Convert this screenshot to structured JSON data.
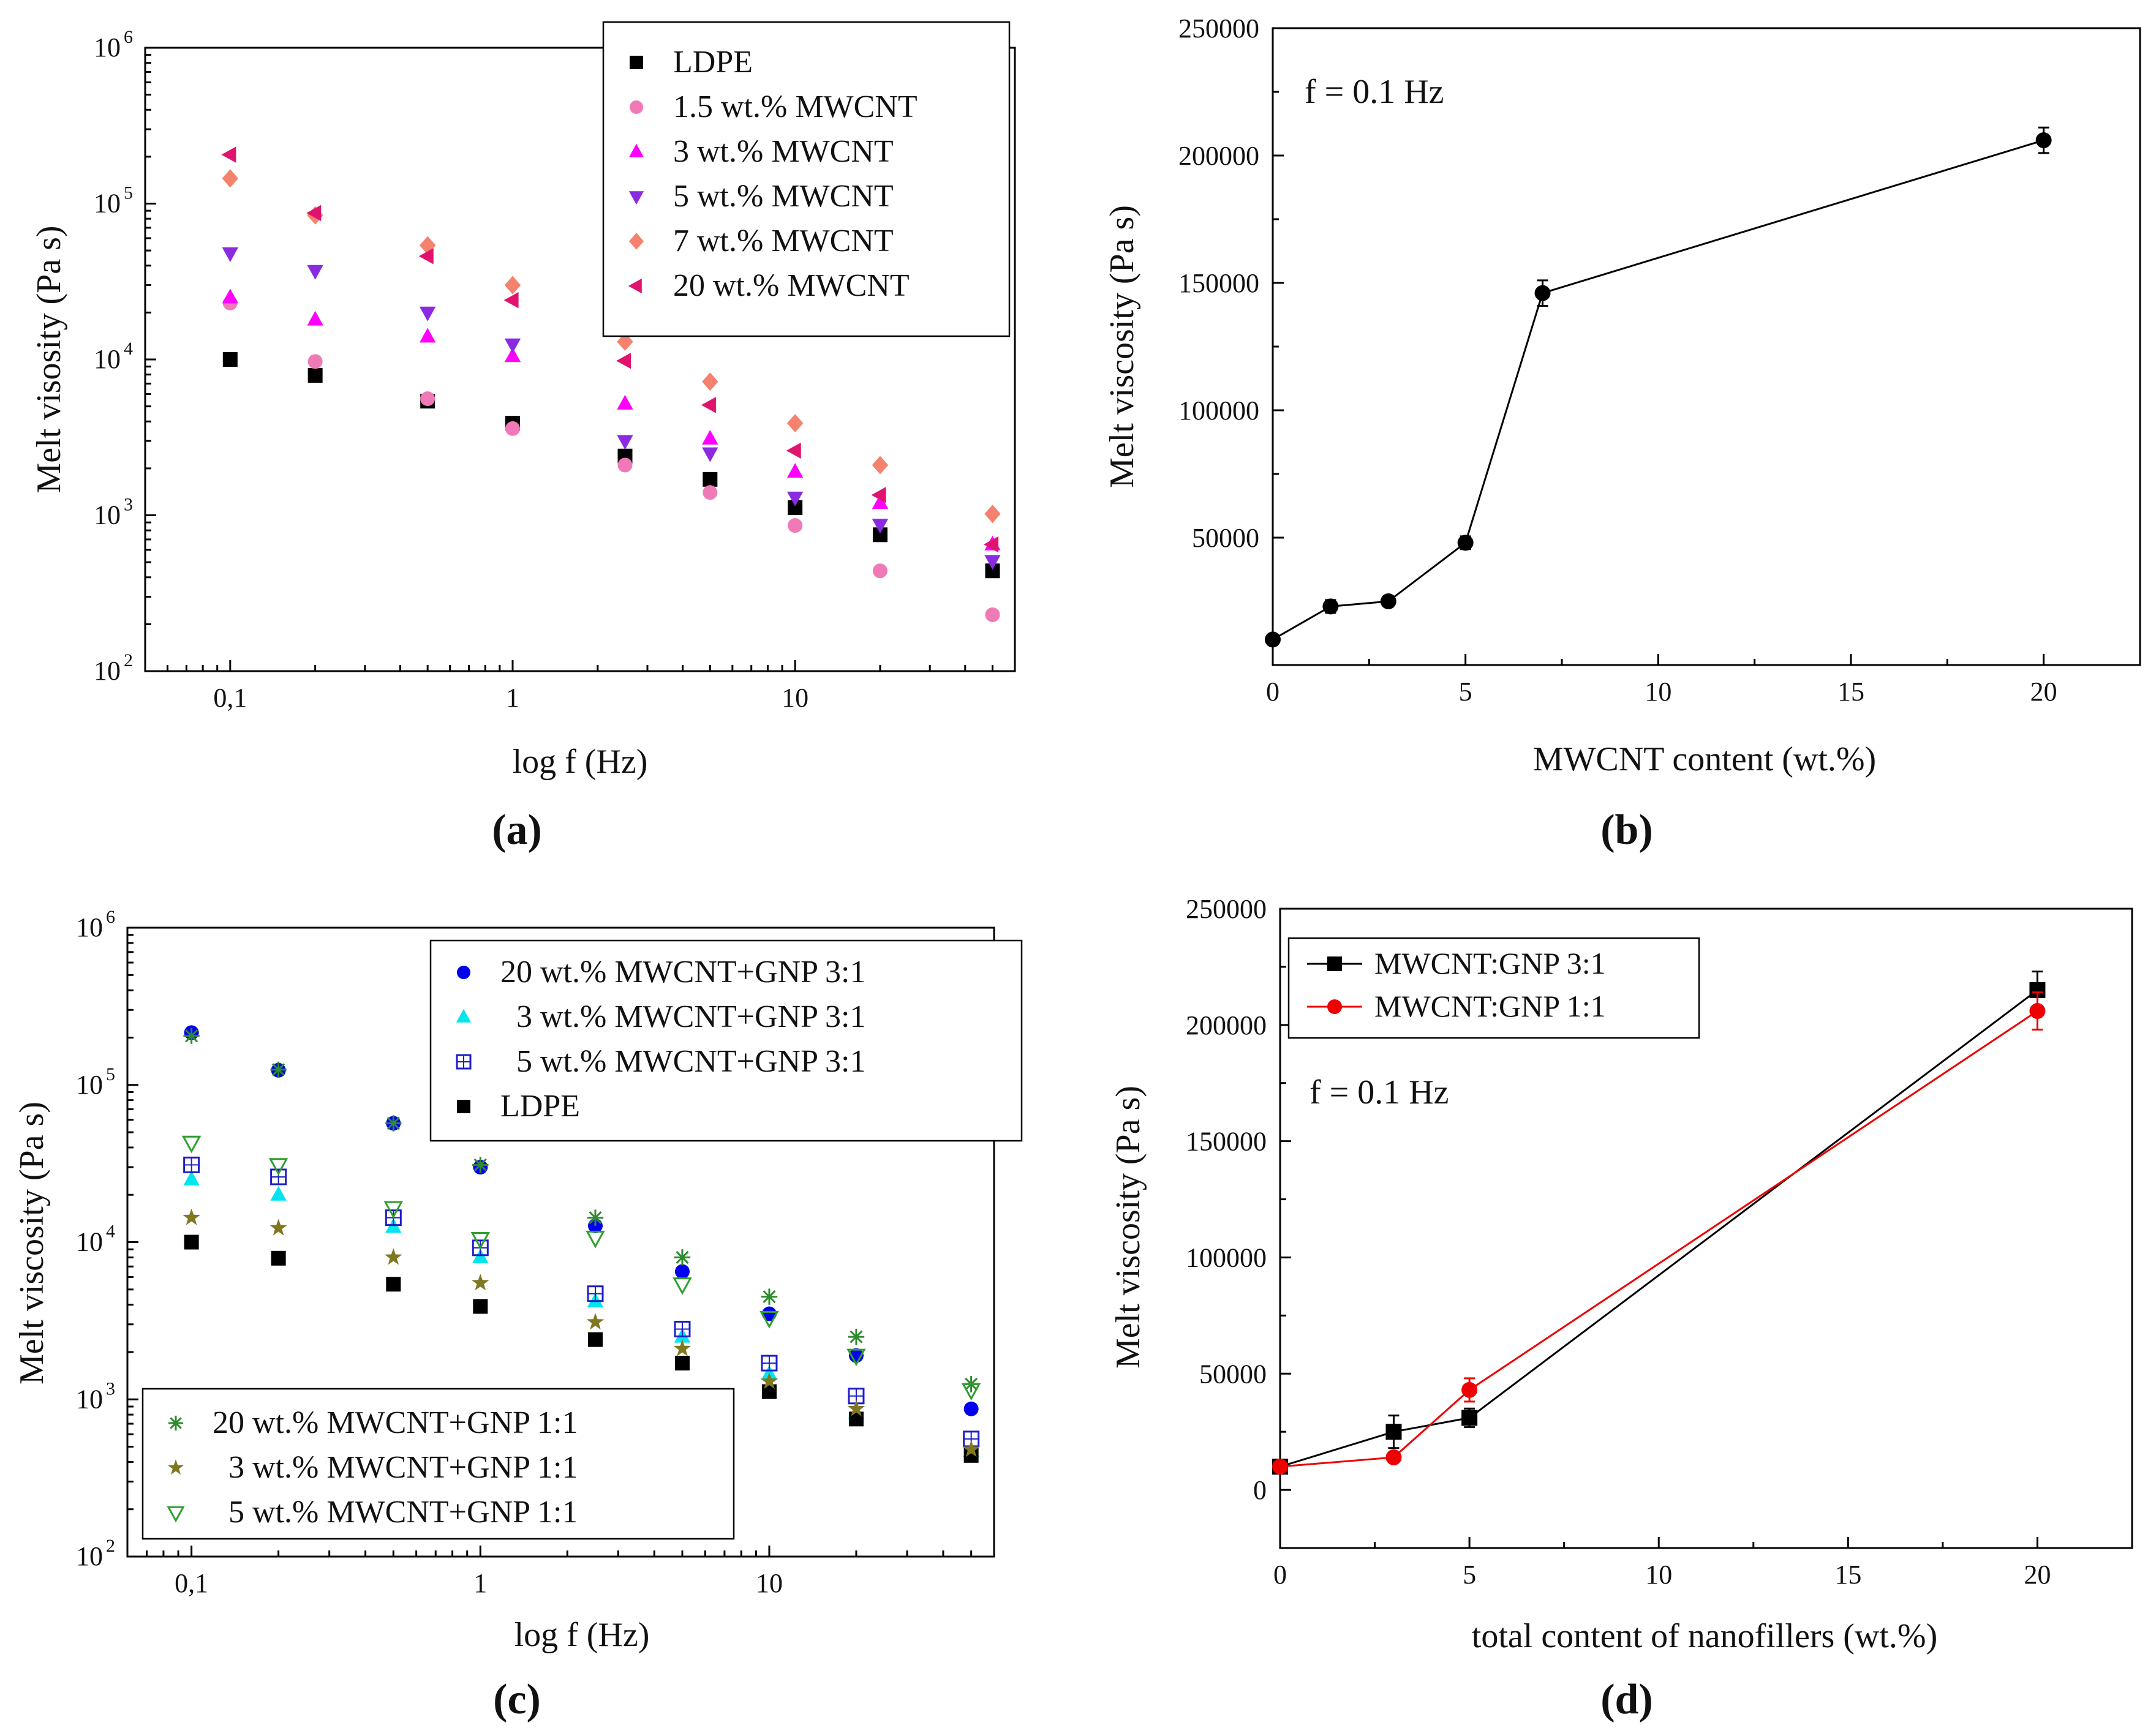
{
  "chart_data": [
    {
      "id": "a",
      "type": "scatter",
      "panel_label": "(a)",
      "xscale": "log",
      "yscale": "log",
      "xlim": [
        0.05,
        60
      ],
      "ylim": [
        100,
        1000000
      ],
      "xticks": [
        0.1,
        1,
        10
      ],
      "xtick_labels": [
        "0,1",
        "1",
        "10"
      ],
      "yticks": [
        100,
        1000,
        10000,
        100000,
        1000000
      ],
      "ytick_base": "10",
      "ytick_exponents": [
        "2",
        "3",
        "4",
        "5",
        "6"
      ],
      "xlabel": "log f (Hz)",
      "ylabel": "Melt visosity (Pa s)",
      "legend_position": "top-right",
      "series": [
        {
          "name": "LDPE",
          "marker": "square",
          "color": "#000000",
          "x": [
            0.1,
            0.2,
            0.5,
            1,
            2.5,
            5,
            10,
            20,
            50
          ],
          "y": [
            10000,
            7900,
            5400,
            3900,
            2400,
            1700,
            1120,
            750,
            440
          ]
        },
        {
          "name": "1.5 wt.% MWCNT",
          "marker": "circle",
          "color": "#f07ab8",
          "x": [
            0.1,
            0.2,
            0.5,
            1,
            2.5,
            5,
            10,
            20,
            50
          ],
          "y": [
            23000,
            9700,
            5600,
            3600,
            2100,
            1400,
            860,
            440,
            230
          ]
        },
        {
          "name": "3 wt.% MWCNT",
          "marker": "triangle-up",
          "color": "#ff00ff",
          "x": [
            0.1,
            0.2,
            0.5,
            1,
            2.5,
            5,
            10,
            20,
            50
          ],
          "y": [
            25000,
            18000,
            14000,
            10500,
            5200,
            3100,
            1900,
            1200,
            650
          ]
        },
        {
          "name": "5 wt.% MWCNT",
          "marker": "triangle-down",
          "color": "#8a2be2",
          "x": [
            0.1,
            0.2,
            0.5,
            1,
            2.5,
            5,
            10,
            20,
            50
          ],
          "y": [
            48000,
            37000,
            20000,
            12500,
            3000,
            2500,
            1300,
            870,
            510
          ]
        },
        {
          "name": "7 wt.% MWCNT",
          "marker": "diamond",
          "color": "#f4826e",
          "x": [
            0.1,
            0.2,
            0.5,
            1,
            2.5,
            5,
            10,
            20,
            50
          ],
          "y": [
            145000,
            84000,
            54000,
            30000,
            13000,
            7200,
            3900,
            2100,
            1020
          ]
        },
        {
          "name": "20 wt.% MWCNT",
          "marker": "triangle-left",
          "color": "#e0146e",
          "x": [
            0.1,
            0.2,
            0.5,
            1,
            2.5,
            5,
            10,
            20,
            50
          ],
          "y": [
            206000,
            87000,
            46000,
            24000,
            9800,
            5100,
            2600,
            1350,
            650
          ]
        }
      ]
    },
    {
      "id": "b",
      "type": "line",
      "panel_label": "(b)",
      "xscale": "linear",
      "yscale": "linear",
      "xlim": [
        0,
        22.5
      ],
      "ylim": [
        0,
        250000
      ],
      "xticks": [
        0,
        5,
        10,
        15,
        20
      ],
      "xtick_labels": [
        "0",
        "5",
        "10",
        "15",
        "20"
      ],
      "yticks": [
        50000,
        100000,
        150000,
        200000,
        250000
      ],
      "ytick_labels": [
        "50000",
        "100000",
        "150000",
        "200000",
        "250000"
      ],
      "xlabel": "MWCNT content  (wt.%)",
      "ylabel": "Melt viscosity (Pa s)",
      "annotation": "f = 0.1 Hz",
      "series": [
        {
          "name": "MWCNT",
          "marker": "circle",
          "color": "#000000",
          "x": [
            0,
            1.5,
            3,
            5,
            7,
            20
          ],
          "y": [
            10000,
            23000,
            25000,
            48000,
            146000,
            206000
          ],
          "err": [
            1500,
            2500,
            2000,
            2500,
            5000,
            5000
          ]
        }
      ]
    },
    {
      "id": "c",
      "type": "scatter",
      "panel_label": "(c)",
      "xscale": "log",
      "yscale": "log",
      "xlim": [
        0.06,
        60
      ],
      "ylim": [
        100,
        1000000
      ],
      "xticks": [
        0.1,
        1,
        10
      ],
      "xtick_labels": [
        "0,1",
        "1",
        "10"
      ],
      "yticks": [
        100,
        1000,
        10000,
        100000,
        1000000
      ],
      "ytick_base": "10",
      "ytick_exponents": [
        "2",
        "3",
        "4",
        "5",
        "6"
      ],
      "xlabel": "log f  (Hz)",
      "ylabel": "Melt  viscosity   (Pa s)",
      "legend_position": "top-right and bottom-left",
      "series": [
        {
          "name": "20 wt.% MWCNT+GNP 3:1",
          "marker": "circle",
          "color": "#0000ee",
          "x": [
            0.1,
            0.2,
            0.5,
            1,
            2.5,
            5,
            10,
            20,
            50
          ],
          "y": [
            215000,
            124000,
            57000,
            30000,
            12700,
            6500,
            3500,
            1900,
            870
          ]
        },
        {
          "name": "  3 wt.% MWCNT+GNP 3:1",
          "marker": "triangle-up",
          "color": "#00e5ee",
          "x": [
            0.1,
            0.2,
            0.5,
            1,
            2.5,
            5,
            10,
            20,
            50
          ],
          "y": [
            25000,
            20000,
            12500,
            8000,
            4200,
            2500,
            1450,
            820,
            470
          ]
        },
        {
          "name": "  5 wt.% MWCNT+GNP 3:1",
          "marker": "square-open-plus",
          "color": "#1e1ec8",
          "x": [
            0.1,
            0.2,
            0.5,
            1,
            2.5,
            5,
            10,
            20,
            50
          ],
          "y": [
            31000,
            26000,
            14300,
            9200,
            4700,
            2800,
            1700,
            1050,
            560
          ]
        },
        {
          "name": "LDPE",
          "marker": "square",
          "color": "#000000",
          "x": [
            0.1,
            0.2,
            0.5,
            1,
            2.5,
            5,
            10,
            20,
            50
          ],
          "y": [
            10000,
            7900,
            5400,
            3900,
            2400,
            1700,
            1120,
            750,
            440
          ]
        },
        {
          "name": "20 wt.% MWCNT+GNP 1:1",
          "marker": "asterisk",
          "color": "#2e8b2e",
          "x": [
            0.1,
            0.2,
            0.5,
            1,
            2.5,
            5,
            10,
            20,
            50
          ],
          "y": [
            205000,
            125000,
            57000,
            31000,
            14300,
            8000,
            4500,
            2500,
            1250
          ]
        },
        {
          "name": "  3 wt.% MWCNT+GNP 1:1",
          "marker": "star",
          "color": "#807820",
          "x": [
            0.1,
            0.2,
            0.5,
            1,
            2.5,
            5,
            10,
            20,
            50
          ],
          "y": [
            14300,
            12300,
            8000,
            5500,
            3100,
            2100,
            1300,
            870,
            480
          ]
        },
        {
          "name": "  5 wt.% MWCNT+GNP 1:1",
          "marker": "triangle-down-open",
          "color": "#2ea02e",
          "x": [
            0.1,
            0.2,
            0.5,
            1,
            2.5,
            5,
            10,
            20,
            50
          ],
          "y": [
            43000,
            31000,
            16500,
            10500,
            10700,
            5400,
            3300,
            1900,
            1150
          ]
        }
      ]
    },
    {
      "id": "d",
      "type": "line",
      "panel_label": "(d)",
      "xscale": "linear",
      "yscale": "linear",
      "xlim": [
        0,
        22.5
      ],
      "ylim": [
        -25000,
        250000
      ],
      "xticks": [
        0,
        5,
        10,
        15,
        20
      ],
      "xtick_labels": [
        "0",
        "5",
        "10",
        "15",
        "20"
      ],
      "yticks": [
        0,
        50000,
        100000,
        150000,
        200000,
        250000
      ],
      "ytick_labels": [
        "0",
        "50000",
        "100000",
        "150000",
        "200000",
        "250000"
      ],
      "xlabel": "total content of nanofillers  (wt.%)",
      "ylabel": "Melt viscosity (Pa s)",
      "annotation": "f = 0.1 Hz",
      "legend_position": "top-left",
      "series": [
        {
          "name": "MWCNT:GNP 3:1",
          "marker": "square",
          "color": "#000000",
          "x": [
            0,
            3,
            5,
            20
          ],
          "y": [
            10000,
            25000,
            31000,
            215000
          ],
          "err": [
            1500,
            7000,
            4000,
            8000
          ]
        },
        {
          "name": "MWCNT:GNP 1:1",
          "marker": "circle",
          "color": "#ee0000",
          "x": [
            0,
            3,
            5,
            20
          ],
          "y": [
            10000,
            14000,
            43000,
            206000
          ],
          "err": [
            1500,
            2000,
            5000,
            8000
          ]
        }
      ]
    }
  ]
}
